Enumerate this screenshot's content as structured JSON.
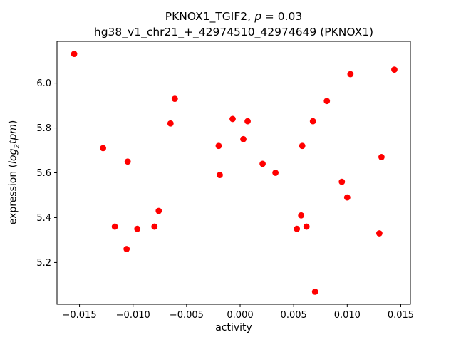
{
  "figure": {
    "title_line1": {
      "prefix": "PKNOX1_TGIF2, ",
      "rho": "ρ",
      "suffix": " = 0.03"
    },
    "title_line2": "hg38_v1_chr21_+_42974510_42974649 (PKNOX1)",
    "xlabel": "activity",
    "ylabel": {
      "prefix": "expression (",
      "log": "log",
      "sub": "2",
      "var": "tpm",
      "suffix": ")"
    }
  },
  "chart_data": {
    "type": "scatter",
    "title": "PKNOX1_TGIF2, ρ = 0.03\nhg38_v1_chr21_+_42974510_42974649 (PKNOX1)",
    "xlabel": "activity",
    "ylabel": "expression (log2 tpm)",
    "legend": null,
    "grid": false,
    "marker_color": "#ff0000",
    "xlim": [
      -0.0171,
      0.0159
    ],
    "ylim": [
      5.014,
      6.186
    ],
    "xticks": [
      -0.015,
      -0.01,
      -0.005,
      0,
      0.005,
      0.01,
      0.015
    ],
    "yticks": [
      5.2,
      5.4,
      5.6,
      5.8,
      6.0
    ],
    "points": [
      [
        -0.0155,
        6.13
      ],
      [
        -0.0128,
        5.71
      ],
      [
        -0.0117,
        5.36
      ],
      [
        -0.0106,
        5.26
      ],
      [
        -0.0105,
        5.65
      ],
      [
        -0.0096,
        5.35
      ],
      [
        -0.008,
        5.36
      ],
      [
        -0.0076,
        5.43
      ],
      [
        -0.0065,
        5.82
      ],
      [
        -0.0061,
        5.93
      ],
      [
        -0.002,
        5.72
      ],
      [
        -0.0019,
        5.59
      ],
      [
        -0.0007,
        5.84
      ],
      [
        0.0003,
        5.75
      ],
      [
        0.0007,
        5.83
      ],
      [
        0.0021,
        5.64
      ],
      [
        0.0033,
        5.6
      ],
      [
        0.0053,
        5.35
      ],
      [
        0.0057,
        5.41
      ],
      [
        0.0062,
        5.36
      ],
      [
        0.0058,
        5.72
      ],
      [
        0.0068,
        5.83
      ],
      [
        0.007,
        5.07
      ],
      [
        0.0081,
        5.92
      ],
      [
        0.0095,
        5.56
      ],
      [
        0.01,
        5.49
      ],
      [
        0.0103,
        6.04
      ],
      [
        0.0132,
        5.67
      ],
      [
        0.013,
        5.33
      ],
      [
        0.0144,
        6.06
      ]
    ]
  }
}
